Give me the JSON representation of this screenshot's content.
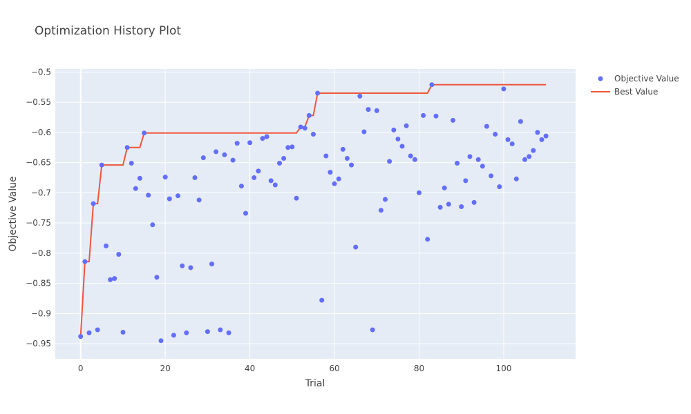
{
  "chart_data": {
    "type": "scatter",
    "title": "Optimization History Plot",
    "xlabel": "Trial",
    "ylabel": "Objective Value",
    "xlim": [
      -6,
      117
    ],
    "ylim": [
      -0.975,
      -0.495
    ],
    "x_ticks": [
      0,
      20,
      40,
      60,
      80,
      100
    ],
    "y_ticks": [
      -0.5,
      -0.55,
      -0.6,
      -0.65,
      -0.7,
      -0.75,
      -0.8,
      -0.85,
      -0.9,
      -0.95
    ],
    "grid": true,
    "legend_position": "top-right",
    "colors": {
      "plot_bg": "#e5ecf6",
      "grid": "#ffffff",
      "objective": "#636efa",
      "best": "#ef553b"
    },
    "series": [
      {
        "name": "Objective Value",
        "kind": "markers",
        "x": [
          0,
          1,
          2,
          3,
          4,
          5,
          6,
          7,
          8,
          9,
          10,
          11,
          12,
          13,
          14,
          15,
          16,
          17,
          18,
          19,
          20,
          21,
          22,
          23,
          24,
          25,
          26,
          27,
          28,
          29,
          30,
          31,
          32,
          33,
          34,
          35,
          36,
          37,
          38,
          39,
          40,
          41,
          42,
          43,
          44,
          45,
          46,
          47,
          48,
          49,
          50,
          51,
          52,
          53,
          54,
          55,
          56,
          57,
          58,
          59,
          60,
          61,
          62,
          63,
          64,
          65,
          66,
          67,
          68,
          69,
          70,
          71,
          72,
          73,
          74,
          75,
          76,
          77,
          78,
          79,
          80,
          81,
          82,
          83,
          84,
          85,
          86,
          87,
          88,
          89,
          90,
          91,
          92,
          93,
          94,
          95,
          96,
          97,
          98,
          99,
          100,
          101,
          102,
          103,
          104,
          105,
          106,
          107,
          108,
          109,
          110
        ],
        "y": [
          -0.938,
          -0.814,
          -0.932,
          -0.718,
          -0.927,
          -0.654,
          -0.788,
          -0.844,
          -0.842,
          -0.802,
          -0.931,
          -0.625,
          -0.651,
          -0.693,
          -0.676,
          -0.601,
          -0.704,
          -0.753,
          -0.84,
          -0.945,
          -0.674,
          -0.71,
          -0.936,
          -0.705,
          -0.821,
          -0.932,
          -0.824,
          -0.675,
          -0.712,
          -0.642,
          -0.93,
          -0.818,
          -0.632,
          -0.927,
          -0.637,
          -0.932,
          -0.646,
          -0.618,
          -0.689,
          -0.734,
          -0.617,
          -0.675,
          -0.664,
          -0.61,
          -0.607,
          -0.68,
          -0.687,
          -0.651,
          -0.643,
          -0.625,
          -0.624,
          -0.709,
          -0.591,
          -0.593,
          -0.572,
          -0.603,
          -0.535,
          -0.878,
          -0.639,
          -0.666,
          -0.685,
          -0.677,
          -0.628,
          -0.643,
          -0.654,
          -0.79,
          -0.54,
          -0.599,
          -0.562,
          -0.927,
          -0.564,
          -0.729,
          -0.711,
          -0.648,
          -0.596,
          -0.611,
          -0.623,
          -0.589,
          -0.639,
          -0.645,
          -0.7,
          -0.572,
          -0.777,
          -0.521,
          -0.573,
          -0.724,
          -0.692,
          -0.719,
          -0.58,
          -0.651,
          -0.723,
          -0.68,
          -0.64,
          -0.716,
          -0.645,
          -0.656,
          -0.59,
          -0.672,
          -0.603,
          -0.69,
          -0.528,
          -0.612,
          -0.619,
          -0.677,
          -0.582,
          -0.645,
          -0.64,
          -0.63,
          -0.6,
          -0.612,
          -0.606
        ]
      },
      {
        "name": "Best Value",
        "kind": "line",
        "x": [
          0,
          1,
          2,
          3,
          4,
          5,
          10,
          11,
          14,
          15,
          51,
          52,
          53,
          54,
          55,
          56,
          82,
          83,
          110
        ],
        "y": [
          -0.938,
          -0.814,
          -0.814,
          -0.718,
          -0.718,
          -0.654,
          -0.654,
          -0.625,
          -0.625,
          -0.601,
          -0.601,
          -0.591,
          -0.591,
          -0.572,
          -0.572,
          -0.535,
          -0.535,
          -0.521,
          -0.521
        ]
      }
    ]
  }
}
